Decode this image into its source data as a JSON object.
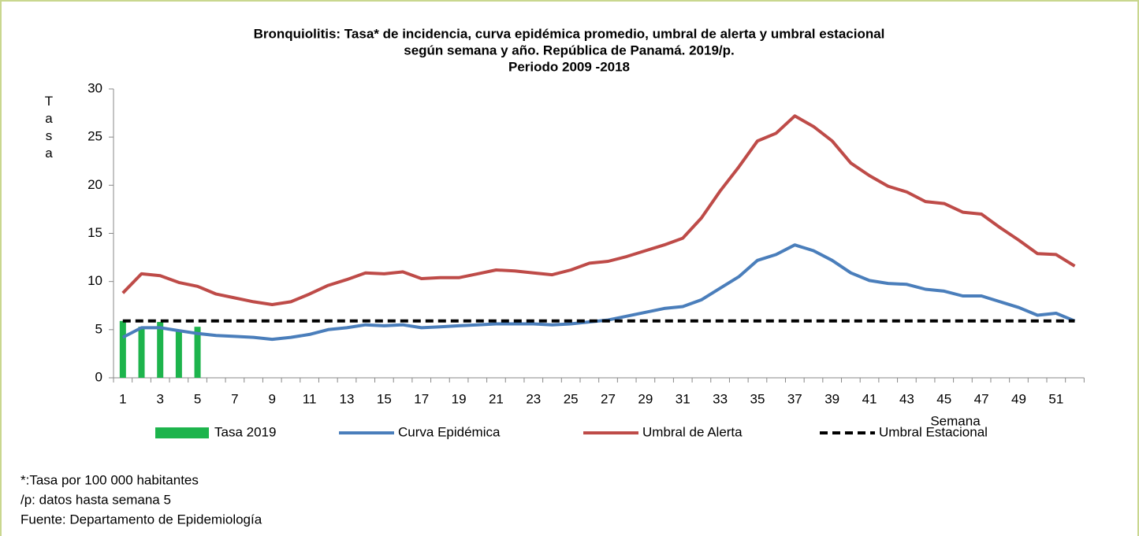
{
  "chart_data": {
    "type": "line",
    "title": [
      "Bronquiolitis: Tasa* de incidencia, curva epidémica promedio, umbral de alerta y umbral estacional",
      "según semana y año. República de Panamá. 2019/p.",
      "Periodo 2009 -2018"
    ],
    "y_label": "Tasa",
    "x_label": "Semana",
    "categories": [
      1,
      null,
      3,
      null,
      5,
      null,
      7,
      null,
      9,
      null,
      11,
      null,
      13,
      null,
      15,
      null,
      17,
      null,
      19,
      null,
      21,
      null,
      23,
      null,
      25,
      null,
      27,
      null,
      29,
      null,
      31,
      null,
      33,
      null,
      35,
      null,
      37,
      null,
      39,
      null,
      41,
      null,
      43,
      null,
      45,
      null,
      47,
      null,
      49,
      null,
      51,
      null
    ],
    "ylim": [
      0,
      30
    ],
    "yticks": [
      0,
      5,
      10,
      15,
      20,
      25,
      30
    ],
    "series": [
      {
        "name": "Tasa 2019",
        "type": "bar",
        "color": "#1db44c",
        "values": [
          5.9,
          5.3,
          5.8,
          4.9,
          5.3,
          null,
          null,
          null,
          null,
          null,
          null,
          null,
          null,
          null,
          null,
          null,
          null,
          null,
          null,
          null,
          null,
          null,
          null,
          null,
          null,
          null,
          null,
          null,
          null,
          null,
          null,
          null,
          null,
          null,
          null,
          null,
          null,
          null,
          null,
          null,
          null,
          null,
          null,
          null,
          null,
          null,
          null,
          null,
          null,
          null,
          null,
          null
        ]
      },
      {
        "name": "Curva Epidémica",
        "type": "line",
        "color": "#4a7ebb",
        "values": [
          4.2,
          5.2,
          5.2,
          4.9,
          4.6,
          4.4,
          4.3,
          4.2,
          4.0,
          4.2,
          4.5,
          5.0,
          5.2,
          5.5,
          5.4,
          5.5,
          5.2,
          5.3,
          5.4,
          5.5,
          5.6,
          5.6,
          5.6,
          5.5,
          5.6,
          5.8,
          6.0,
          6.4,
          6.8,
          7.2,
          7.4,
          8.1,
          9.3,
          10.5,
          12.2,
          12.8,
          13.8,
          13.2,
          12.2,
          10.9,
          10.1,
          9.8,
          9.7,
          9.2,
          9.0,
          8.5,
          8.5,
          7.9,
          7.3,
          6.5,
          6.7,
          5.9
        ]
      },
      {
        "name": "Umbral de Alerta",
        "type": "line",
        "color": "#be4b48",
        "values": [
          8.8,
          10.8,
          10.6,
          9.9,
          9.5,
          8.7,
          8.3,
          7.9,
          7.6,
          7.9,
          8.7,
          9.6,
          10.2,
          10.9,
          10.8,
          11.0,
          10.3,
          10.4,
          10.4,
          10.8,
          11.2,
          11.1,
          10.9,
          10.7,
          11.2,
          11.9,
          12.1,
          12.6,
          13.2,
          13.8,
          14.5,
          16.6,
          19.4,
          21.9,
          24.6,
          25.4,
          27.2,
          26.1,
          24.6,
          22.3,
          21.0,
          19.9,
          19.3,
          18.3,
          18.1,
          17.2,
          17.0,
          15.6,
          14.3,
          12.9,
          12.8,
          11.6
        ]
      },
      {
        "name": "Umbral Estacional",
        "type": "line",
        "dash": true,
        "color": "#000000",
        "values": [
          5.9,
          5.9,
          5.9,
          5.9,
          5.9,
          5.9,
          5.9,
          5.9,
          5.9,
          5.9,
          5.9,
          5.9,
          5.9,
          5.9,
          5.9,
          5.9,
          5.9,
          5.9,
          5.9,
          5.9,
          5.9,
          5.9,
          5.9,
          5.9,
          5.9,
          5.9,
          5.9,
          5.9,
          5.9,
          5.9,
          5.9,
          5.9,
          5.9,
          5.9,
          5.9,
          5.9,
          5.9,
          5.9,
          5.9,
          5.9,
          5.9,
          5.9,
          5.9,
          5.9,
          5.9,
          5.9,
          5.9,
          5.9,
          5.9,
          5.9,
          5.9,
          5.9
        ]
      }
    ],
    "notes": [
      "*:Tasa por 100 000 habitantes",
      "/p: datos hasta semana  5",
      "Fuente: Departamento de Epidemiología"
    ]
  }
}
